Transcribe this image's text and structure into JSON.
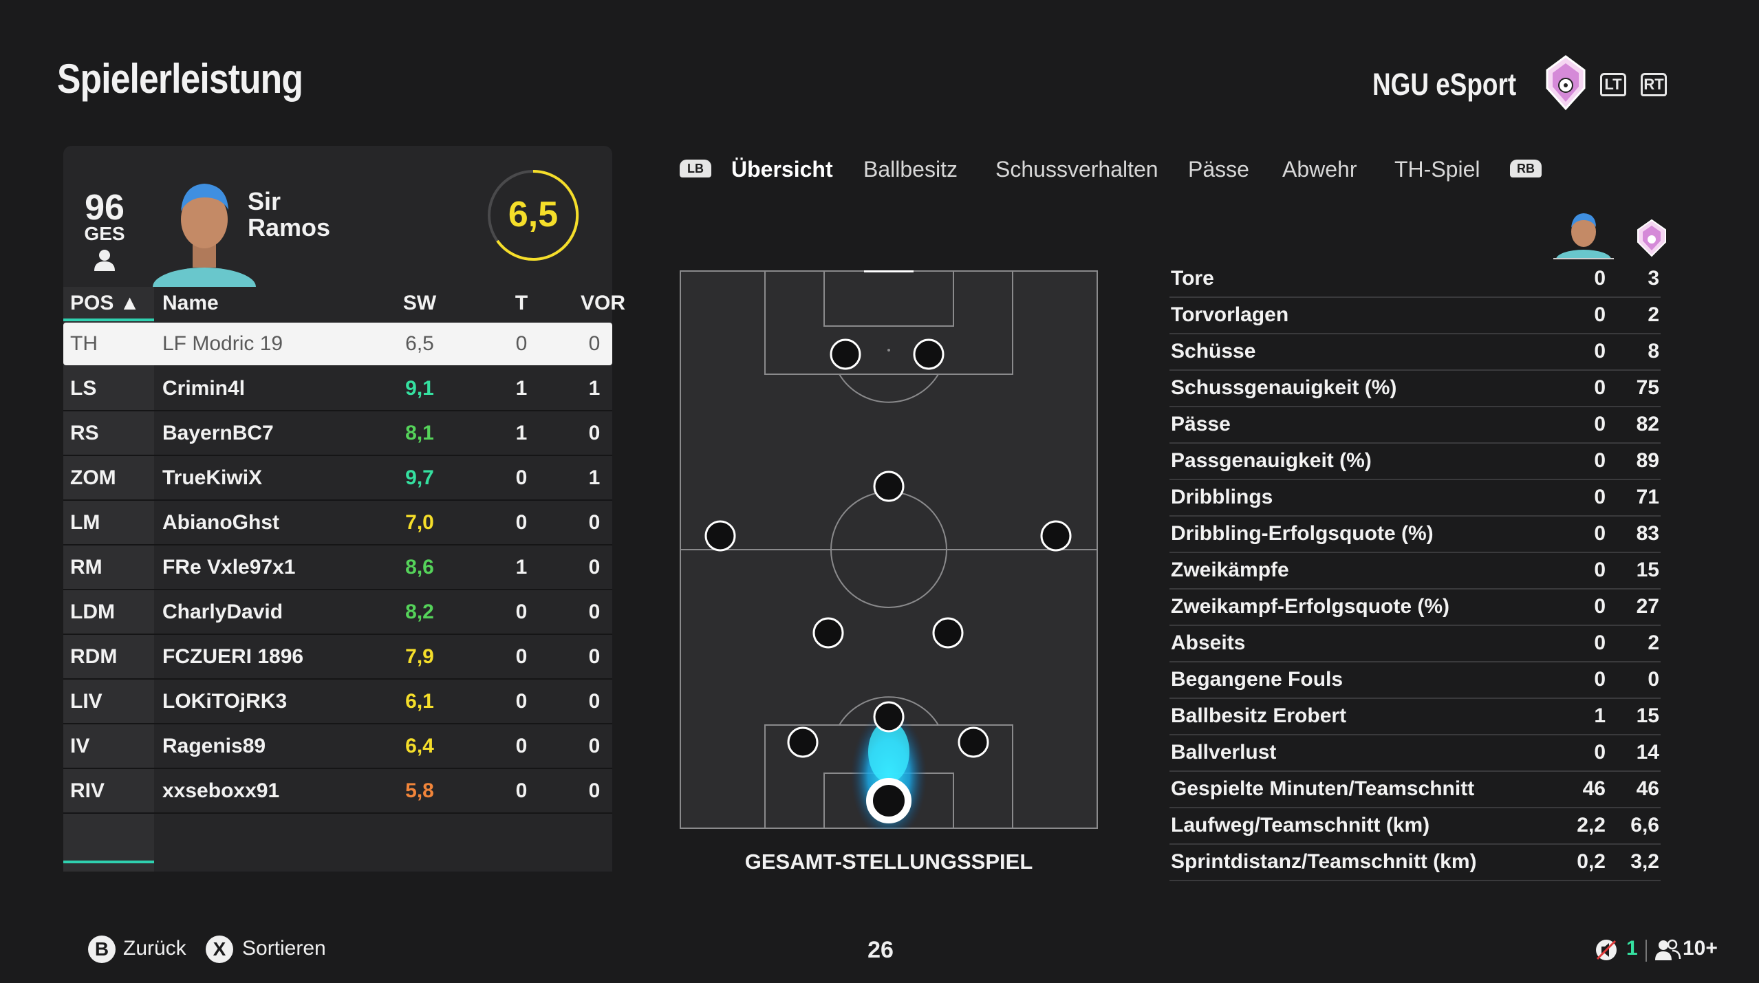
{
  "header": {
    "title": "Spielerleistung",
    "club_name": "NGU eSport",
    "trigger_left": "LT",
    "trigger_right": "RT"
  },
  "player_card": {
    "overall": "96",
    "overall_label": "GES",
    "first_name": "Sir",
    "last_name": "Ramos",
    "rating": "6,5",
    "rating_color": "#f5de2a"
  },
  "table": {
    "headers": {
      "pos": "POS ▲",
      "name": "Name",
      "sw": "SW",
      "t": "T",
      "vor": "VOR"
    },
    "rows": [
      {
        "pos": "TH",
        "name": "LF Modric 19",
        "sw": "6,5",
        "sw_color": "#5a5a5a",
        "t": "0",
        "vor": "0"
      },
      {
        "pos": "LS",
        "name": "Crimin4l",
        "sw": "9,1",
        "sw_color": "#35e0a0",
        "t": "1",
        "vor": "1"
      },
      {
        "pos": "RS",
        "name": "BayernBC7",
        "sw": "8,1",
        "sw_color": "#55d35a",
        "t": "1",
        "vor": "0"
      },
      {
        "pos": "ZOM",
        "name": "TrueKiwiX",
        "sw": "9,7",
        "sw_color": "#35e0a0",
        "t": "0",
        "vor": "1"
      },
      {
        "pos": "LM",
        "name": "AbianoGhst",
        "sw": "7,0",
        "sw_color": "#f5de2a",
        "t": "0",
        "vor": "0"
      },
      {
        "pos": "RM",
        "name": "FRe Vxle97x1",
        "sw": "8,6",
        "sw_color": "#55d35a",
        "t": "1",
        "vor": "0"
      },
      {
        "pos": "LDM",
        "name": "CharlyDavid",
        "sw": "8,2",
        "sw_color": "#55d35a",
        "t": "0",
        "vor": "0"
      },
      {
        "pos": "RDM",
        "name": "FCZUERI 1896",
        "sw": "7,9",
        "sw_color": "#f5de2a",
        "t": "0",
        "vor": "0"
      },
      {
        "pos": "LIV",
        "name": "LOKiTOjRK3",
        "sw": "6,1",
        "sw_color": "#f5de2a",
        "t": "0",
        "vor": "0"
      },
      {
        "pos": "IV",
        "name": "Ragenis89",
        "sw": "6,4",
        "sw_color": "#f5de2a",
        "t": "0",
        "vor": "0"
      },
      {
        "pos": "RIV",
        "name": "xxseboxx91",
        "sw": "5,8",
        "sw_color": "#f2853a",
        "t": "0",
        "vor": "0"
      }
    ]
  },
  "tabs": {
    "bumper_left": "LB",
    "bumper_right": "RB",
    "items": [
      "Übersicht",
      "Ballbesitz",
      "Schussverhalten",
      "Pässe",
      "Abwehr",
      "TH-Spiel"
    ],
    "active": "Übersicht"
  },
  "pitch": {
    "caption": "GESAMT-STELLUNGSSPIEL"
  },
  "stats": [
    {
      "label": "Tore",
      "player": "0",
      "team": "3"
    },
    {
      "label": "Torvorlagen",
      "player": "0",
      "team": "2"
    },
    {
      "label": "Schüsse",
      "player": "0",
      "team": "8"
    },
    {
      "label": "Schussgenauigkeit (%)",
      "player": "0",
      "team": "75"
    },
    {
      "label": "Pässe",
      "player": "0",
      "team": "82"
    },
    {
      "label": "Passgenauigkeit (%)",
      "player": "0",
      "team": "89"
    },
    {
      "label": "Dribblings",
      "player": "0",
      "team": "71"
    },
    {
      "label": "Dribbling-Erfolgsquote (%)",
      "player": "0",
      "team": "83"
    },
    {
      "label": "Zweikämpfe",
      "player": "0",
      "team": "15"
    },
    {
      "label": "Zweikampf-Erfolgsquote (%)",
      "player": "0",
      "team": "27"
    },
    {
      "label": "Abseits",
      "player": "0",
      "team": "2"
    },
    {
      "label": "Begangene Fouls",
      "player": "0",
      "team": "0"
    },
    {
      "label": "Ballbesitz Erobert",
      "player": "1",
      "team": "15"
    },
    {
      "label": "Ballverlust",
      "player": "0",
      "team": "14"
    },
    {
      "label": "Gespielte Minuten/Teamschnitt",
      "player": "46",
      "team": "46"
    },
    {
      "label": "Laufweg/Teamschnitt (km)",
      "player": "2,2",
      "team": "6,6"
    },
    {
      "label": "Sprintdistanz/Teamschnitt (km)",
      "player": "0,2",
      "team": "3,2"
    }
  ],
  "footer": {
    "back_button": "B",
    "back_label": "Zurück",
    "sort_button": "X",
    "sort_label": "Sortieren",
    "page_number": "26",
    "mic_count": "1",
    "party_count": "10+"
  }
}
